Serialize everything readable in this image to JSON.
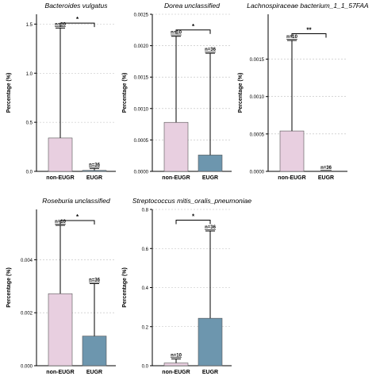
{
  "colors": {
    "non_eugr": "#e8cfe0",
    "eugr": "#6d96ae",
    "axis": "#000000",
    "grid": "#bdbdbd",
    "sig": "#000000"
  },
  "chart_data": [
    {
      "type": "bar",
      "title": "Bacteroides vulgatus",
      "ylabel": "Percentage (%)",
      "ylim": [
        0,
        1.6
      ],
      "yticks": [
        0.0,
        0.5,
        1.0,
        1.5
      ],
      "tick_labels": [
        "0.0",
        "0.5",
        "1.0",
        "1.5"
      ],
      "categories": [
        "non-EUGR",
        "EUGR"
      ],
      "values": [
        0.34,
        0.01
      ],
      "error_top": [
        1.46,
        0.03
      ],
      "n_labels": [
        "n=10",
        "n=36"
      ],
      "significance": "*",
      "sig_level": 1.51,
      "grid": true
    },
    {
      "type": "bar",
      "title": "Dorea unclassified",
      "ylabel": "Percentage (%)",
      "ylim": [
        0,
        0.0025
      ],
      "yticks": [
        0,
        0.0005,
        0.001,
        0.0015,
        0.002,
        0.0025
      ],
      "tick_labels": [
        "0.0000",
        "0.0005",
        "0.0010",
        "0.0015",
        "0.0020",
        "0.0025"
      ],
      "categories": [
        "non-EUGR",
        "EUGR"
      ],
      "values": [
        0.00078,
        0.00026
      ],
      "error_top": [
        0.00215,
        0.00188
      ],
      "n_labels": [
        "n=10",
        "n=36"
      ],
      "significance": "*",
      "sig_level": 0.00225,
      "grid": true
    },
    {
      "type": "bar",
      "title": "Lachnospiraceae bacterium_1_1_57FAA",
      "ylabel": "Percentage (%)",
      "ylim": [
        0,
        0.0021
      ],
      "yticks": [
        0,
        0.0005,
        0.001,
        0.0015
      ],
      "tick_labels": [
        "0.0000",
        "0.0005",
        "0.0010",
        "0.0015"
      ],
      "categories": [
        "non-EUGR",
        "EUGR"
      ],
      "values": [
        0.00054,
        0.0
      ],
      "error_top": [
        0.00175,
        0.0
      ],
      "n_labels": [
        "n=10",
        "n=36"
      ],
      "significance": "**",
      "sig_level": 0.00184,
      "grid": true
    },
    {
      "type": "bar",
      "title": "Roseburia unclassified",
      "ylabel": "Percentage (%)",
      "ylim": [
        0,
        0.0059
      ],
      "yticks": [
        0,
        0.002,
        0.004
      ],
      "tick_labels": [
        "0.000",
        "0.002",
        "0.004"
      ],
      "categories": [
        "non-EUGR",
        "EUGR"
      ],
      "values": [
        0.00272,
        0.00112
      ],
      "error_top": [
        0.0053,
        0.0031
      ],
      "n_labels": [
        "n=10",
        "n=36"
      ],
      "significance": "*",
      "sig_level": 0.00548,
      "grid": true
    },
    {
      "type": "bar",
      "title": "Streptococcus mitis_oralis_pneumoniae",
      "ylabel": "Percentage (%)",
      "ylim": [
        0,
        0.8
      ],
      "yticks": [
        0.0,
        0.2,
        0.4,
        0.6,
        0.8
      ],
      "tick_labels": [
        "0.0",
        "0.2",
        "0.4",
        "0.6",
        "0.8"
      ],
      "categories": [
        "non-EUGR",
        "EUGR"
      ],
      "values": [
        0.014,
        0.243
      ],
      "error_top": [
        0.035,
        0.69
      ],
      "n_labels": [
        "n=10",
        "n=36"
      ],
      "significance": "*",
      "sig_level": 0.745,
      "grid": true
    }
  ]
}
